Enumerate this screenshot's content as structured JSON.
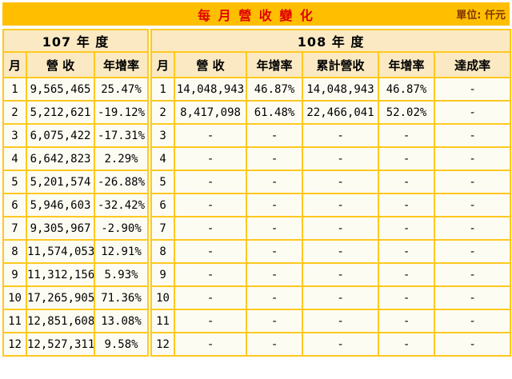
{
  "title_bar": {
    "title": "每 月 營 收 變 化",
    "unit_label": "單位: 仟元"
  },
  "colors": {
    "title_bar_bg": "#FFBF00",
    "title_text": "#E00000",
    "unit_text": "#803300",
    "grid_border": "#FFC81F",
    "row_divider": "#F1E48C",
    "header_bg": "#FAE9C2",
    "cell_bg": "#FDFCF3",
    "page_bg": "#FFFFFF"
  },
  "chart_data": {
    "type": "table",
    "title": "每 月 營 收 變 化",
    "unit": "單位: 仟元",
    "year_sections": [
      "107 年 度",
      "108 年 度"
    ],
    "columns": [
      "月",
      "營 收",
      "年增率",
      "月",
      "營 收",
      "年增率",
      "累計營收",
      "年增率",
      "達成率"
    ],
    "rows": [
      [
        "1",
        "9,565,465",
        "25.47%",
        "1",
        "14,048,943",
        "46.87%",
        "14,048,943",
        "46.87%",
        "-"
      ],
      [
        "2",
        "5,212,621",
        "-19.12%",
        "2",
        "8,417,098",
        "61.48%",
        "22,466,041",
        "52.02%",
        "-"
      ],
      [
        "3",
        "6,075,422",
        "-17.31%",
        "3",
        "-",
        "-",
        "-",
        "-",
        "-"
      ],
      [
        "4",
        "6,642,823",
        "2.29%",
        "4",
        "-",
        "-",
        "-",
        "-",
        "-"
      ],
      [
        "5",
        "5,201,574",
        "-26.88%",
        "5",
        "-",
        "-",
        "-",
        "-",
        "-"
      ],
      [
        "6",
        "5,946,603",
        "-32.42%",
        "6",
        "-",
        "-",
        "-",
        "-",
        "-"
      ],
      [
        "7",
        "9,305,967",
        "-2.90%",
        "7",
        "-",
        "-",
        "-",
        "-",
        "-"
      ],
      [
        "8",
        "11,574,053",
        "12.91%",
        "8",
        "-",
        "-",
        "-",
        "-",
        "-"
      ],
      [
        "9",
        "11,312,156",
        "5.93%",
        "9",
        "-",
        "-",
        "-",
        "-",
        "-"
      ],
      [
        "10",
        "17,265,905",
        "71.36%",
        "10",
        "-",
        "-",
        "-",
        "-",
        "-"
      ],
      [
        "11",
        "12,851,608",
        "13.08%",
        "11",
        "-",
        "-",
        "-",
        "-",
        "-"
      ],
      [
        "12",
        "12,527,311",
        "9.58%",
        "12",
        "-",
        "-",
        "-",
        "-",
        "-"
      ]
    ]
  }
}
